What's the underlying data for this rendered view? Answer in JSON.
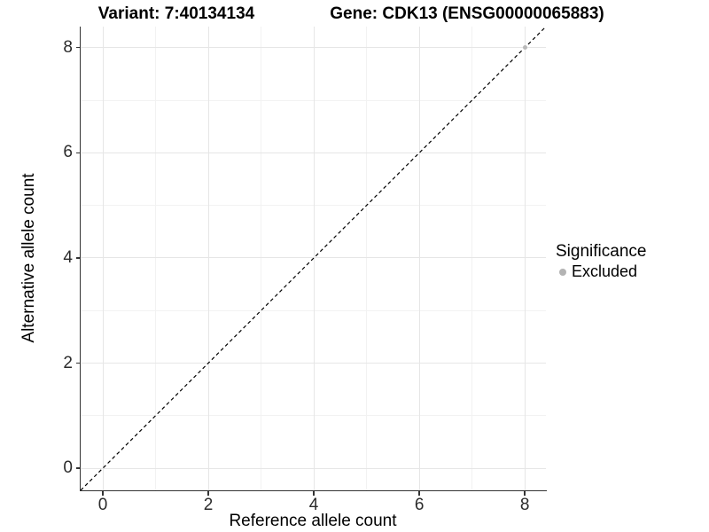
{
  "titles": {
    "left": "Variant: 7:40134134",
    "right": "Gene: CDK13 (ENSG00000065883)"
  },
  "chart_data": {
    "type": "scatter",
    "title": "Variant: 7:40134134 / Gene: CDK13 (ENSG00000065883)",
    "xlabel": "Reference allele count",
    "ylabel": "Alternative allele count",
    "xlim": [
      -0.42,
      8.4
    ],
    "ylim": [
      -0.42,
      8.4
    ],
    "x_major_ticks": [
      0,
      2,
      4,
      6,
      8
    ],
    "y_major_ticks": [
      0,
      2,
      4,
      6,
      8
    ],
    "x_minor_ticks": [
      1,
      3,
      5,
      7
    ],
    "y_minor_ticks": [
      1,
      3,
      5,
      7
    ],
    "grid": "major+minor",
    "points": [
      {
        "x": 8,
        "y": 8,
        "series": "Excluded"
      }
    ],
    "reference_line": {
      "style": "dashed",
      "slope": 1,
      "intercept": 0,
      "color": "#000000"
    },
    "legend": {
      "title": "Significance",
      "position": "right",
      "items": [
        {
          "label": "Excluded",
          "color": "#b3b3b3"
        }
      ]
    },
    "colors": {
      "point": "#b9b9b9",
      "grid_major": "#e6e6e6",
      "grid_minor": "#f2f2f2",
      "axis_line": "#333333",
      "tick_mark": "#333333"
    }
  }
}
